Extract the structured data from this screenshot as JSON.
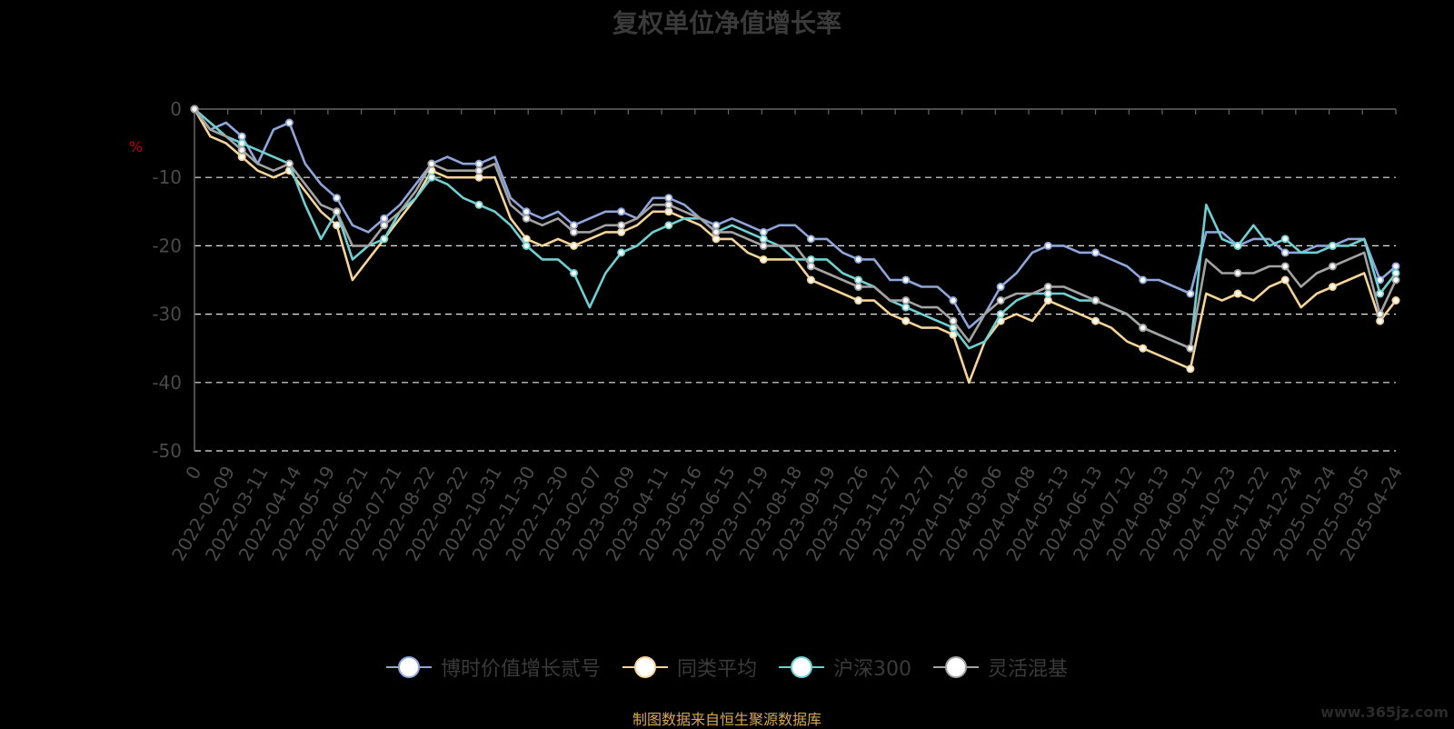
{
  "chart_data": {
    "type": "line",
    "title": "复权单位净值增长率",
    "ylabel": "%",
    "ylim": [
      -50,
      0
    ],
    "yticks": [
      0,
      -10,
      -20,
      -30,
      -40,
      -50
    ],
    "grid": true,
    "legend_position": "bottom",
    "x_ticks": [
      "0",
      "2022-02-09",
      "2022-03-11",
      "2022-04-14",
      "2022-05-19",
      "2022-06-21",
      "2022-07-21",
      "2022-08-22",
      "2022-09-22",
      "2022-10-31",
      "2022-11-30",
      "2022-12-30",
      "2023-02-07",
      "2023-03-09",
      "2023-04-11",
      "2023-05-16",
      "2023-06-15",
      "2023-07-19",
      "2023-08-18",
      "2023-09-19",
      "2023-10-26",
      "2023-11-27",
      "2023-12-27",
      "2024-01-26",
      "2024-03-06",
      "2024-04-08",
      "2024-05-13",
      "2024-06-13",
      "2024-07-12",
      "2024-08-13",
      "2024-09-12",
      "2024-10-23",
      "2024-11-22",
      "2024-12-24",
      "2025-01-24",
      "2025-03-05",
      "2025-04-24"
    ],
    "series": [
      {
        "name": "博时价值增长贰号",
        "color": "#8ea6dc",
        "values": [
          0,
          -3,
          -2,
          -4,
          -8,
          -3,
          -2,
          -8,
          -11,
          -13,
          -17,
          -18,
          -16,
          -14,
          -11,
          -8,
          -7,
          -8,
          -8,
          -7,
          -13,
          -15,
          -16,
          -15,
          -17,
          -16,
          -15,
          -15,
          -16,
          -13,
          -13,
          -14,
          -16,
          -17,
          -16,
          -17,
          -18,
          -17,
          -17,
          -19,
          -19,
          -21,
          -22,
          -22,
          -25,
          -25,
          -26,
          -26,
          -28,
          -32,
          -30,
          -26,
          -24,
          -21,
          -20,
          -20,
          -21,
          -21,
          -22,
          -23,
          -25,
          -25,
          -26,
          -27,
          -18,
          -18,
          -20,
          -19,
          -19,
          -21,
          -21,
          -20,
          -20,
          -19,
          -19,
          -25,
          -23
        ]
      },
      {
        "name": "同类平均",
        "color": "#f5d49a",
        "values": [
          0,
          -4,
          -5,
          -7,
          -9,
          -10,
          -9,
          -12,
          -15,
          -17,
          -25,
          -22,
          -19,
          -16,
          -13,
          -9,
          -10,
          -10,
          -10,
          -10,
          -16,
          -19,
          -20,
          -19,
          -20,
          -19,
          -18,
          -18,
          -17,
          -15,
          -15,
          -16,
          -17,
          -19,
          -19,
          -21,
          -22,
          -22,
          -22,
          -25,
          -26,
          -27,
          -28,
          -28,
          -30,
          -31,
          -32,
          -32,
          -33,
          -40,
          -34,
          -31,
          -30,
          -31,
          -28,
          -29,
          -30,
          -31,
          -32,
          -34,
          -35,
          -36,
          -37,
          -38,
          -27,
          -28,
          -27,
          -28,
          -26,
          -25,
          -29,
          -27,
          -26,
          -25,
          -24,
          -31,
          -28
        ]
      },
      {
        "name": "沪深300",
        "color": "#6fd0d2",
        "values": [
          0,
          -2,
          -4,
          -5,
          -6,
          -7,
          -8,
          -14,
          -19,
          -15,
          -22,
          -20,
          -19,
          -15,
          -13,
          -10,
          -11,
          -13,
          -14,
          -15,
          -17,
          -20,
          -22,
          -22,
          -24,
          -29,
          -24,
          -21,
          -20,
          -18,
          -17,
          -16,
          -16,
          -18,
          -17,
          -18,
          -19,
          -20,
          -22,
          -22,
          -22,
          -24,
          -25,
          -26,
          -28,
          -29,
          -30,
          -31,
          -32,
          -35,
          -34,
          -30,
          -28,
          -27,
          -27,
          -27,
          -28,
          -28,
          -29,
          -30,
          -32,
          -33,
          -34,
          -35,
          -14,
          -19,
          -20,
          -17,
          -20,
          -19,
          -21,
          -21,
          -20,
          -20,
          -19,
          -27,
          -24
        ]
      },
      {
        "name": "灵活混基",
        "color": "#a3a3a3",
        "values": [
          0,
          -3,
          -4,
          -6,
          -8,
          -9,
          -8,
          -11,
          -14,
          -15,
          -20,
          -20,
          -17,
          -15,
          -12,
          -8,
          -9,
          -9,
          -9,
          -8,
          -14,
          -16,
          -17,
          -16,
          -18,
          -18,
          -17,
          -17,
          -16,
          -14,
          -14,
          -15,
          -16,
          -18,
          -18,
          -19,
          -20,
          -20,
          -20,
          -23,
          -24,
          -25,
          -26,
          -26,
          -28,
          -28,
          -29,
          -29,
          -31,
          -34,
          -30,
          -28,
          -27,
          -27,
          -26,
          -26,
          -27,
          -28,
          -29,
          -30,
          -32,
          -33,
          -34,
          -35,
          -22,
          -24,
          -24,
          -24,
          -23,
          -23,
          -26,
          -24,
          -23,
          -22,
          -21,
          -30,
          -25
        ]
      }
    ]
  },
  "footer": {
    "source": "制图数据来自恒生聚源数据库",
    "watermark": "www.365jz.com"
  }
}
